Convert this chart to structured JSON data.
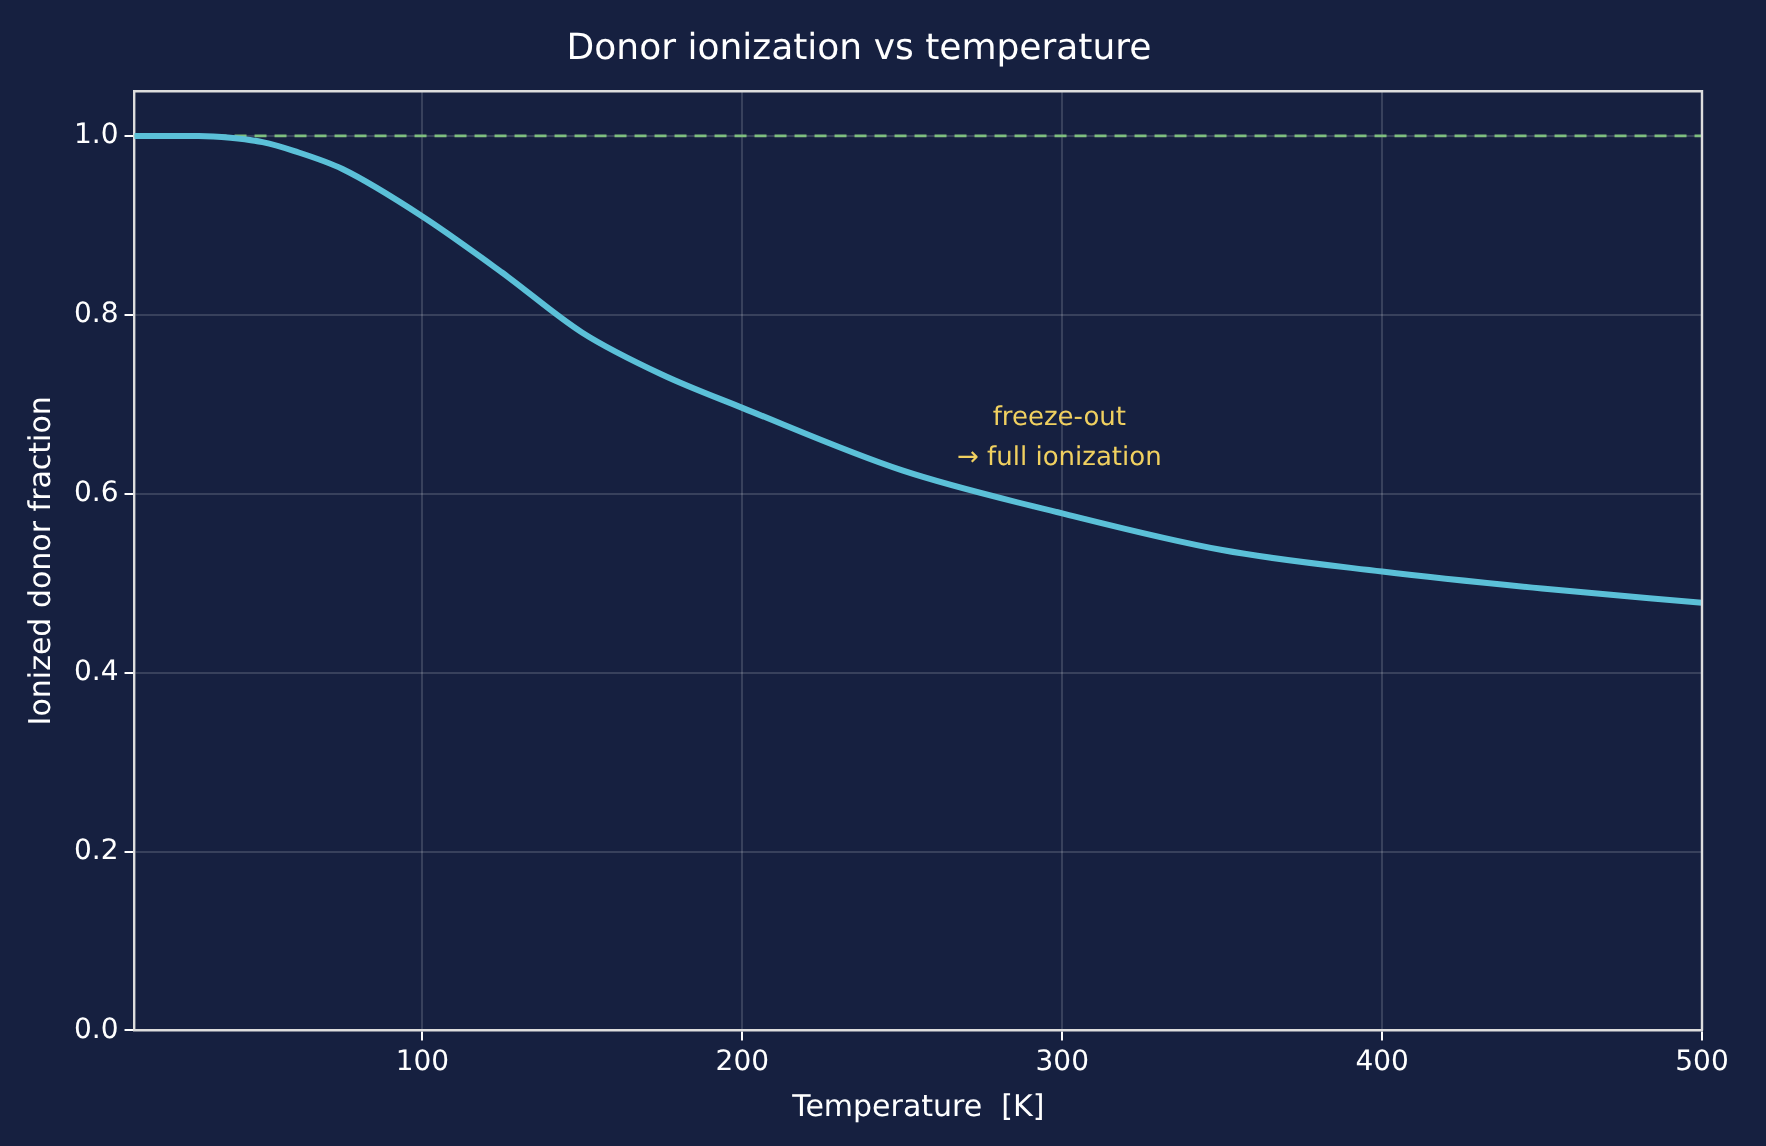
{
  "chart_data": {
    "type": "line",
    "title": "Donor ionization vs temperature",
    "xlabel": "Temperature  [K]",
    "ylabel": "Ionized donor fraction",
    "x": [
      10,
      20,
      30,
      40,
      50,
      60,
      75,
      100,
      125,
      150,
      175,
      200,
      250,
      300,
      350,
      400,
      450,
      500
    ],
    "series": [
      {
        "color": "#5bc0d8",
        "values": [
          1.0,
          1.0,
          1.0,
          0.998,
          0.993,
          0.983,
          0.963,
          0.91,
          0.847,
          0.78,
          0.733,
          0.696,
          0.626,
          0.578,
          0.537,
          0.513,
          0.494,
          0.478
        ]
      }
    ],
    "xlim": [
      10,
      500
    ],
    "xticks": [
      100,
      200,
      300,
      400,
      500
    ],
    "ylim": [
      0,
      1.05
    ],
    "yticks": [
      {
        "value": 0,
        "label": "0.0"
      },
      0.2,
      0.4,
      0.6,
      0.8,
      {
        "value": 1,
        "label": "1.0"
      }
    ],
    "ref_lines": [
      {
        "axis": "y",
        "value": 1.0,
        "color": "#7fbf7f",
        "line_style": "dashed"
      }
    ],
    "annotations": [
      "freeze-out\n→ full ionization"
    ],
    "grid": true,
    "legend": false,
    "marker": "none",
    "line_style": "solid"
  }
}
